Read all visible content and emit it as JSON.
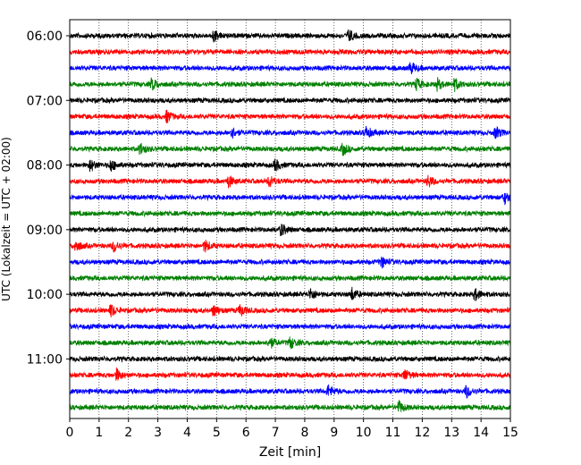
{
  "chart_data": {
    "type": "line",
    "subtype": "helicorder",
    "xlabel": "Zeit  [min]",
    "ylabel": "UTC (Lokalzeit = UTC + 02:00)",
    "xlim": [
      0,
      15
    ],
    "x_ticks": [
      0,
      1,
      2,
      3,
      4,
      5,
      6,
      7,
      8,
      9,
      10,
      11,
      12,
      13,
      14,
      15
    ],
    "grid": "vertical dotted",
    "trace_interval_min": 15,
    "trace_colors": [
      "#000000",
      "#ff0000",
      "#0000ff",
      "#008000"
    ],
    "trace_start_labels": [
      {
        "trace": 0,
        "label": "06:00"
      },
      {
        "trace": 4,
        "label": "07:00"
      },
      {
        "trace": 8,
        "label": "08:00"
      },
      {
        "trace": 12,
        "label": "09:00"
      },
      {
        "trace": 16,
        "label": "10:00"
      },
      {
        "trace": 20,
        "label": "11:00"
      }
    ],
    "traces": [
      {
        "start": "06:00",
        "color": "#000000",
        "events_min": [
          4.9,
          9.5
        ]
      },
      {
        "start": "06:15",
        "color": "#ff0000",
        "events_min": []
      },
      {
        "start": "06:30",
        "color": "#0000ff",
        "events_min": [
          11.6
        ]
      },
      {
        "start": "06:45",
        "color": "#008000",
        "events_min": [
          2.8,
          11.8,
          12.5,
          13.1
        ]
      },
      {
        "start": "07:00",
        "color": "#000000",
        "events_min": []
      },
      {
        "start": "07:15",
        "color": "#ff0000",
        "events_min": [
          3.3
        ]
      },
      {
        "start": "07:30",
        "color": "#0000ff",
        "events_min": [
          5.5,
          10.1,
          14.5
        ]
      },
      {
        "start": "07:45",
        "color": "#008000",
        "events_min": [
          2.4,
          9.3
        ]
      },
      {
        "start": "08:00",
        "color": "#000000",
        "events_min": [
          0.7,
          1.4,
          7.0
        ]
      },
      {
        "start": "08:15",
        "color": "#ff0000",
        "events_min": [
          5.4,
          6.8,
          12.2
        ]
      },
      {
        "start": "08:30",
        "color": "#0000ff",
        "events_min": [
          14.8
        ]
      },
      {
        "start": "08:45",
        "color": "#008000",
        "events_min": []
      },
      {
        "start": "09:00",
        "color": "#000000",
        "events_min": [
          7.2
        ]
      },
      {
        "start": "09:15",
        "color": "#ff0000",
        "events_min": [
          0.2,
          1.5,
          4.6
        ]
      },
      {
        "start": "09:30",
        "color": "#0000ff",
        "events_min": [
          10.6
        ]
      },
      {
        "start": "09:45",
        "color": "#008000",
        "events_min": []
      },
      {
        "start": "10:00",
        "color": "#000000",
        "events_min": [
          8.2,
          9.6,
          13.8
        ]
      },
      {
        "start": "10:15",
        "color": "#ff0000",
        "events_min": [
          1.4,
          4.9,
          5.8
        ]
      },
      {
        "start": "10:30",
        "color": "#0000ff",
        "events_min": []
      },
      {
        "start": "10:45",
        "color": "#008000",
        "events_min": [
          6.8,
          7.5
        ]
      },
      {
        "start": "11:00",
        "color": "#000000",
        "events_min": []
      },
      {
        "start": "11:15",
        "color": "#ff0000",
        "events_min": [
          1.6,
          11.4
        ]
      },
      {
        "start": "11:30",
        "color": "#0000ff",
        "events_min": [
          8.8,
          13.5
        ]
      },
      {
        "start": "11:45",
        "color": "#008000",
        "events_min": [
          11.2
        ]
      }
    ]
  }
}
